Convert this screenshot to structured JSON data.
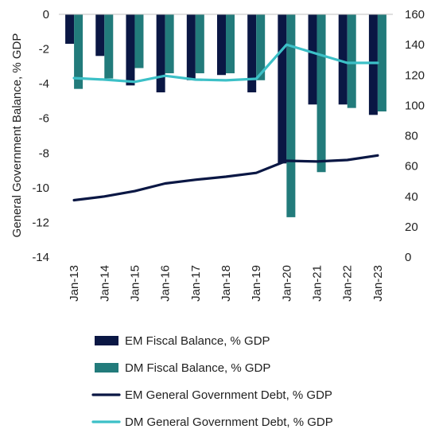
{
  "chart_data": {
    "type": "bar",
    "title": "",
    "ylabel": "General Government Balance, % GDP",
    "y2label": "",
    "categories": [
      "Jan-13",
      "Jan-14",
      "Jan-15",
      "Jan-16",
      "Jan-17",
      "Jan-18",
      "Jan-19",
      "Jan-20",
      "Jan-21",
      "Jan-22",
      "Jan-23"
    ],
    "ylim": [
      -14,
      0
    ],
    "y_ticks": [
      "0",
      "-2",
      "-4",
      "-6",
      "-8",
      "-10",
      "-12",
      "-14"
    ],
    "y2lim": [
      0,
      160
    ],
    "y2_ticks": [
      "160",
      "140",
      "120",
      "100",
      "80",
      "60",
      "40",
      "20",
      "0"
    ],
    "legend_position": "bottom",
    "grid": false,
    "series": [
      {
        "name": "EM Fiscal Balance, % GDP",
        "type": "bar",
        "axis": "left",
        "color": "#0a1744",
        "values": [
          -1.7,
          -2.4,
          -4.1,
          -4.5,
          -3.8,
          -3.5,
          -4.5,
          -8.6,
          -5.2,
          -5.2,
          -5.8
        ]
      },
      {
        "name": "DM Fiscal Balance, % GDP",
        "type": "bar",
        "axis": "left",
        "color": "#227b7b",
        "values": [
          -4.3,
          -3.7,
          -3.1,
          -3.4,
          -3.4,
          -3.4,
          -3.8,
          -11.7,
          -9.1,
          -5.4,
          -5.6
        ]
      },
      {
        "name": "EM General Government Debt, % GDP",
        "type": "line",
        "axis": "right",
        "color": "#0a1744",
        "values": [
          37.5,
          40.0,
          43.5,
          48.5,
          51.0,
          53.0,
          55.5,
          63.5,
          63.0,
          64.0,
          67.0
        ]
      },
      {
        "name": "DM General Government Debt, % GDP",
        "type": "line",
        "axis": "right",
        "color": "#3cc0c7",
        "values": [
          118.0,
          117.0,
          115.5,
          119.5,
          117.0,
          116.5,
          117.5,
          140.0,
          134.0,
          128.0,
          128.0
        ]
      }
    ]
  }
}
